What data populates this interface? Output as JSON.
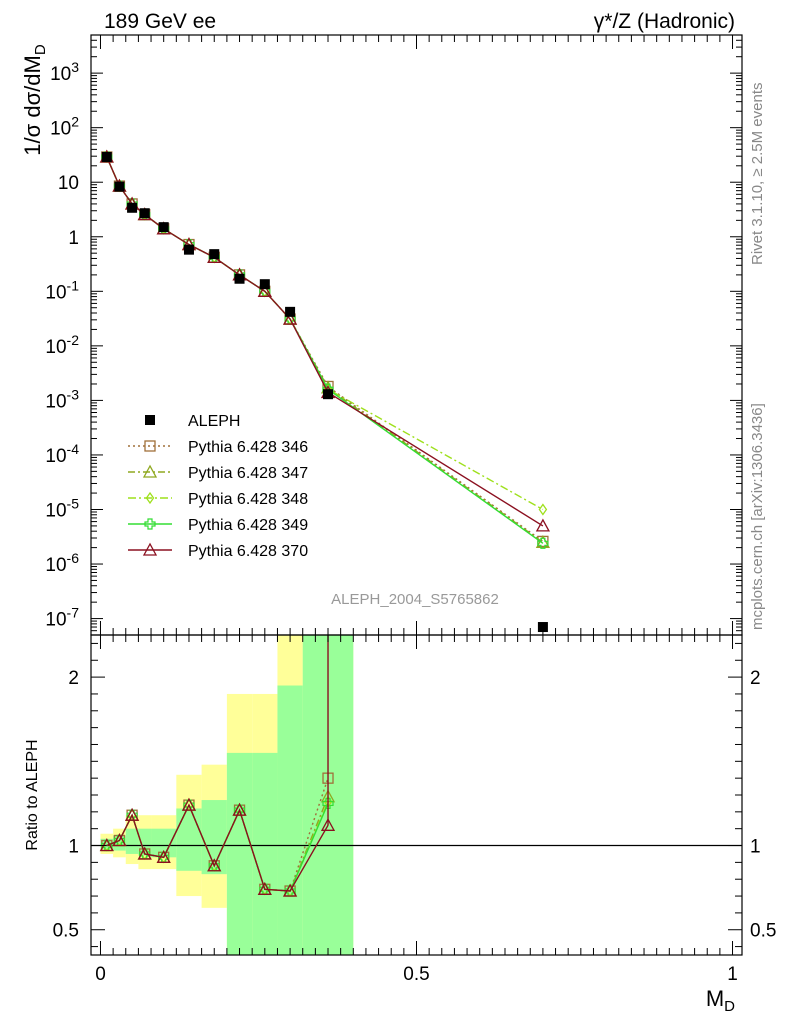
{
  "header": {
    "left_label": "189 GeV ee",
    "right_label": "γ*/Z (Hadronic)"
  },
  "side_labels": {
    "rivet": "Rivet 3.1.10, ≥ 2.5M events",
    "mcplots": "mcplots.cern.ch [arXiv:1306.3436]"
  },
  "watermark": "ALEPH_2004_S5765862",
  "chart_data": [
    {
      "type": "line",
      "panel": "main",
      "ylabel": "1/σ  dσ/dM_D",
      "yscale": "log",
      "xlim": [
        -0.015,
        1.015
      ],
      "ylim": [
        5e-08,
        5000
      ],
      "grid": false,
      "legend_placement": "center-left",
      "y_ticks": [
        {
          "value": 1000,
          "label": "10^3"
        },
        {
          "value": 100,
          "label": "10^2"
        },
        {
          "value": 10,
          "label": "10"
        },
        {
          "value": 1,
          "label": "1"
        },
        {
          "value": 0.1,
          "label": "10^-1"
        },
        {
          "value": 0.01,
          "label": "10^-2"
        },
        {
          "value": 0.001,
          "label": "10^-3"
        },
        {
          "value": 0.0001,
          "label": "10^-4"
        },
        {
          "value": 1e-05,
          "label": "10^-5"
        },
        {
          "value": 1e-06,
          "label": "10^-6"
        },
        {
          "value": 1e-07,
          "label": "10^-7"
        }
      ],
      "x": [
        0.01,
        0.03,
        0.05,
        0.07,
        0.1,
        0.14,
        0.18,
        0.22,
        0.26,
        0.3,
        0.36,
        0.7
      ],
      "series": [
        {
          "name": "ALEPH",
          "color": "#000000",
          "marker": "filled-square",
          "values": [
            29,
            8.3,
            3.4,
            2.7,
            1.5,
            0.58,
            0.48,
            0.17,
            0.135,
            0.042,
            0.0013,
            7e-08
          ]
        },
        {
          "name": "Pythia 6.428 346",
          "color": "#a0703a",
          "marker": "open-square",
          "dash": "2,3",
          "values": [
            29,
            8.5,
            4.0,
            2.55,
            1.4,
            0.72,
            0.42,
            0.2,
            0.1,
            0.031,
            0.0018,
            2.6e-06
          ]
        },
        {
          "name": "Pythia 6.428 347",
          "color": "#8fa820",
          "marker": "open-triangle",
          "dash": "7,3,2,3",
          "values": [
            29,
            8.5,
            4.0,
            2.55,
            1.4,
            0.72,
            0.42,
            0.2,
            0.1,
            0.031,
            0.0017,
            2.5e-06
          ]
        },
        {
          "name": "Pythia 6.428 348",
          "color": "#9ee01c",
          "marker": "open-diamond",
          "dash": "8,3,2,3",
          "values": [
            29,
            8.5,
            4.0,
            2.55,
            1.4,
            0.72,
            0.42,
            0.2,
            0.1,
            0.031,
            0.0016,
            1e-05
          ]
        },
        {
          "name": "Pythia 6.428 349",
          "color": "#33dd33",
          "marker": "open-cross",
          "dash": "",
          "values": [
            29,
            8.5,
            4.0,
            2.55,
            1.4,
            0.72,
            0.42,
            0.2,
            0.1,
            0.031,
            0.0016,
            2.4e-06
          ]
        },
        {
          "name": "Pythia 6.428 370",
          "color": "#8b1020",
          "marker": "open-triangle",
          "dash": "",
          "values": [
            29,
            8.5,
            4.0,
            2.55,
            1.4,
            0.72,
            0.42,
            0.2,
            0.1,
            0.031,
            0.0014,
            5e-06
          ]
        }
      ]
    },
    {
      "type": "line",
      "panel": "ratio",
      "ylabel": "Ratio to ALEPH",
      "xlabel": "M_D",
      "xlim": [
        -0.015,
        1.015
      ],
      "ylim": [
        0.35,
        2.25
      ],
      "reference_value": 1,
      "y_ticks": [
        {
          "value": 2,
          "label": "2"
        },
        {
          "value": 1,
          "label": "1"
        },
        {
          "value": 0.5,
          "label": "0.5"
        }
      ],
      "x_ticks": [
        {
          "value": 0,
          "label": "0"
        },
        {
          "value": 0.5,
          "label": "0.5"
        },
        {
          "value": 1,
          "label": "1"
        }
      ],
      "bands": [
        {
          "x0": 0.0,
          "x1": 0.02,
          "yellow": [
            0.95,
            1.07
          ],
          "green": [
            0.98,
            1.04
          ]
        },
        {
          "x0": 0.02,
          "x1": 0.04,
          "yellow": [
            0.93,
            1.1
          ],
          "green": [
            0.97,
            1.06
          ]
        },
        {
          "x0": 0.04,
          "x1": 0.06,
          "yellow": [
            0.89,
            1.18
          ],
          "green": [
            0.95,
            1.1
          ]
        },
        {
          "x0": 0.06,
          "x1": 0.08,
          "yellow": [
            0.86,
            1.18
          ],
          "green": [
            0.94,
            1.1
          ]
        },
        {
          "x0": 0.08,
          "x1": 0.12,
          "yellow": [
            0.86,
            1.18
          ],
          "green": [
            0.93,
            1.1
          ]
        },
        {
          "x0": 0.12,
          "x1": 0.16,
          "yellow": [
            0.7,
            1.42
          ],
          "green": [
            0.85,
            1.22
          ]
        },
        {
          "x0": 0.16,
          "x1": 0.2,
          "yellow": [
            0.63,
            1.48
          ],
          "green": [
            0.83,
            1.27
          ]
        },
        {
          "x0": 0.2,
          "x1": 0.24,
          "yellow": [
            0.35,
            1.9
          ],
          "green": [
            0.35,
            1.55
          ]
        },
        {
          "x0": 0.24,
          "x1": 0.28,
          "yellow": [
            0.35,
            1.9
          ],
          "green": [
            0.35,
            1.55
          ]
        },
        {
          "x0": 0.28,
          "x1": 0.32,
          "yellow": [
            0.35,
            2.25
          ],
          "green": [
            0.35,
            1.95
          ]
        },
        {
          "x0": 0.32,
          "x1": 0.4,
          "yellow": [
            0.35,
            2.25
          ],
          "green": [
            0.35,
            2.25
          ]
        }
      ],
      "x": [
        0.01,
        0.03,
        0.05,
        0.07,
        0.1,
        0.14,
        0.18,
        0.22,
        0.26,
        0.3,
        0.36
      ],
      "series": [
        {
          "name": "Pythia 6.428 346",
          "color": "#a0703a",
          "marker": "open-square",
          "dash": "2,3",
          "values": [
            1.0,
            1.03,
            1.18,
            0.95,
            0.93,
            1.24,
            0.88,
            1.21,
            0.74,
            0.73,
            1.4
          ]
        },
        {
          "name": "Pythia 6.428 347",
          "color": "#8fa820",
          "marker": "open-triangle",
          "dash": "7,3,2,3",
          "values": [
            1.0,
            1.03,
            1.18,
            0.95,
            0.93,
            1.24,
            0.88,
            1.21,
            0.74,
            0.73,
            1.29
          ]
        },
        {
          "name": "Pythia 6.428 348",
          "color": "#9ee01c",
          "marker": "open-diamond",
          "dash": "8,3,2,3",
          "values": [
            1.0,
            1.03,
            1.18,
            0.95,
            0.93,
            1.24,
            0.88,
            1.21,
            0.74,
            0.73,
            1.26
          ]
        },
        {
          "name": "Pythia 6.428 349",
          "color": "#33dd33",
          "marker": "open-cross",
          "dash": "",
          "values": [
            1.0,
            1.03,
            1.18,
            0.95,
            0.93,
            1.24,
            0.88,
            1.21,
            0.74,
            0.73,
            1.25
          ]
        },
        {
          "name": "Pythia 6.428 370",
          "color": "#8b1020",
          "marker": "open-triangle",
          "dash": "",
          "values": [
            1.0,
            1.03,
            1.18,
            0.95,
            0.93,
            1.24,
            0.88,
            1.21,
            0.74,
            0.73,
            1.12
          ]
        }
      ],
      "overflow_line": {
        "series": "Pythia 6.428 370",
        "x": 0.36,
        "from": 1.12,
        "to": 2.25
      }
    }
  ]
}
